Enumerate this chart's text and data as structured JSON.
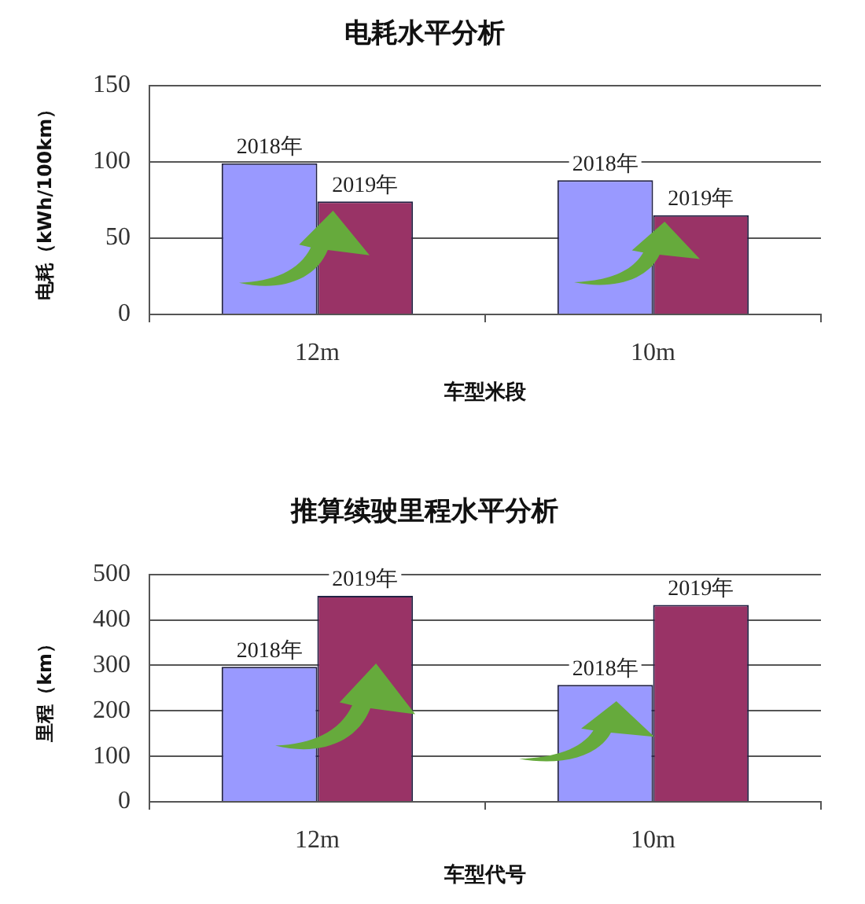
{
  "chart_data": [
    {
      "type": "bar",
      "title": "电耗水平分析",
      "xlabel": "车型米段",
      "ylabel": "电耗（kWh/100km）",
      "categories": [
        "12m",
        "10m"
      ],
      "series": [
        {
          "name": "2018年",
          "color": "#9999ff",
          "values": [
            99,
            88
          ]
        },
        {
          "name": "2019年",
          "color": "#993366",
          "values": [
            74,
            65
          ]
        }
      ],
      "ylim": [
        0,
        150
      ],
      "yticks": [
        0,
        50,
        100,
        150
      ],
      "grid": "y",
      "legend": false
    },
    {
      "type": "bar",
      "title": "推算续驶里程水平分析",
      "xlabel": "车型代号",
      "ylabel": "里程（km）",
      "categories": [
        "12m",
        "10m"
      ],
      "series": [
        {
          "name": "2018年",
          "color": "#9999ff",
          "values": [
            297,
            257
          ]
        },
        {
          "name": "2019年",
          "color": "#993366",
          "values": [
            453,
            433
          ]
        }
      ],
      "ylim": [
        0,
        500
      ],
      "yticks": [
        0,
        100,
        200,
        300,
        400,
        500
      ],
      "grid": "y",
      "legend": false
    }
  ]
}
